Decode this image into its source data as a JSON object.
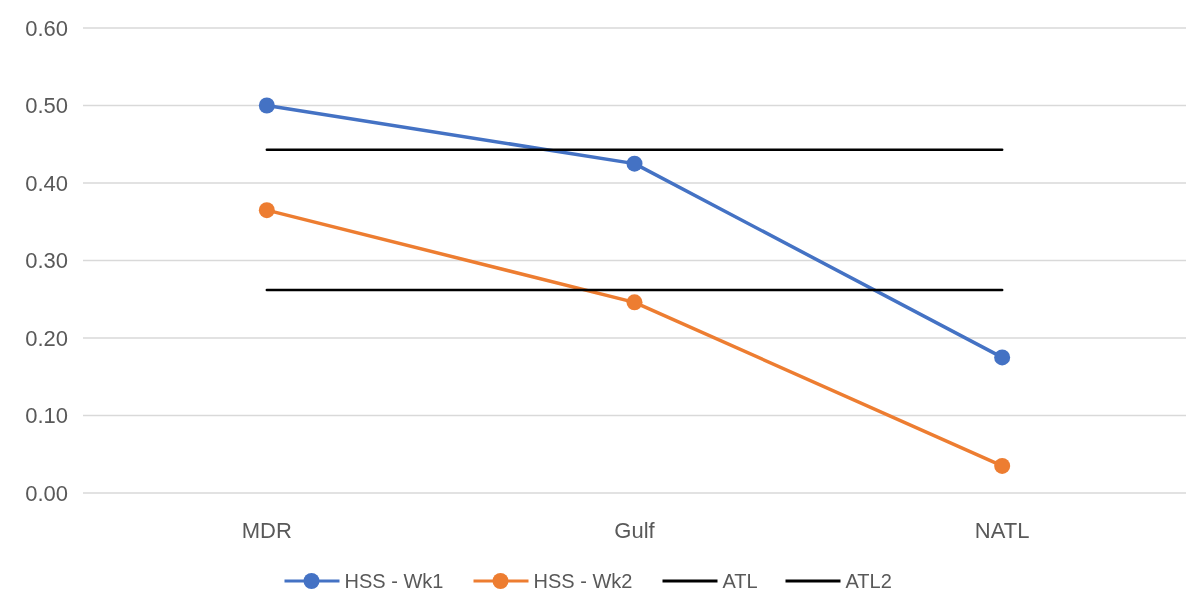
{
  "chart_data": {
    "type": "line",
    "categories": [
      "MDR",
      "Gulf",
      "NATL"
    ],
    "series": [
      {
        "name": "HSS - Wk1",
        "color": "#4472c4",
        "values": [
          0.5,
          0.425,
          0.175
        ],
        "marker": "circle"
      },
      {
        "name": "HSS - Wk2",
        "color": "#ed7d31",
        "values": [
          0.365,
          0.246,
          0.035
        ],
        "marker": "circle"
      },
      {
        "name": "ATL",
        "color": "#000000",
        "values": [
          0.443,
          0.443,
          0.443
        ],
        "marker": "none"
      },
      {
        "name": "ATL2",
        "color": "#000000",
        "values": [
          0.262,
          0.262,
          0.262
        ],
        "marker": "none"
      }
    ],
    "ylim": [
      0,
      0.6
    ],
    "yticks": [
      {
        "value": 0,
        "label": "0.00"
      },
      {
        "value": 0.1,
        "label": "0.10"
      },
      {
        "value": 0.2,
        "label": "0.20"
      },
      {
        "value": 0.3,
        "label": "0.30"
      },
      {
        "value": 0.4,
        "label": "0.40"
      },
      {
        "value": 0.5,
        "label": "0.50"
      },
      {
        "value": 0.6,
        "label": "0.60"
      }
    ],
    "grid": "y",
    "legend": "bottom",
    "line_style": "solid"
  }
}
